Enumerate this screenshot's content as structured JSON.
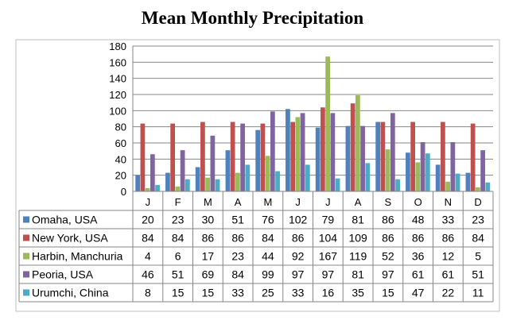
{
  "chart_data": {
    "type": "bar",
    "title": "Mean Monthly Precipitation",
    "xlabel": "",
    "ylabel": "",
    "ylim": [
      0,
      180
    ],
    "yticks": [
      0,
      20,
      40,
      60,
      80,
      100,
      120,
      140,
      160,
      180
    ],
    "grid": true,
    "legend": "data-table-below",
    "categories": [
      "J",
      "F",
      "M",
      "A",
      "M",
      "J",
      "J",
      "A",
      "S",
      "O",
      "N",
      "D"
    ],
    "series": [
      {
        "name": "Omaha, USA",
        "color": "#4F81BD",
        "values": [
          20,
          23,
          30,
          51,
          76,
          102,
          79,
          81,
          86,
          48,
          33,
          23
        ]
      },
      {
        "name": "New York, USA",
        "color": "#C0504D",
        "values": [
          84,
          84,
          86,
          86,
          84,
          86,
          104,
          109,
          86,
          86,
          86,
          84
        ]
      },
      {
        "name": "Harbin, Manchuria",
        "color": "#9BBB59",
        "values": [
          4,
          6,
          17,
          23,
          44,
          92,
          167,
          119,
          52,
          36,
          12,
          5
        ]
      },
      {
        "name": "Peoria, USA",
        "color": "#8064A2",
        "values": [
          46,
          51,
          69,
          84,
          99,
          97,
          97,
          81,
          97,
          61,
          61,
          51
        ]
      },
      {
        "name": "Urumchi, China",
        "color": "#4BACC6",
        "values": [
          8,
          15,
          15,
          33,
          25,
          33,
          16,
          35,
          15,
          47,
          22,
          11
        ]
      }
    ]
  }
}
